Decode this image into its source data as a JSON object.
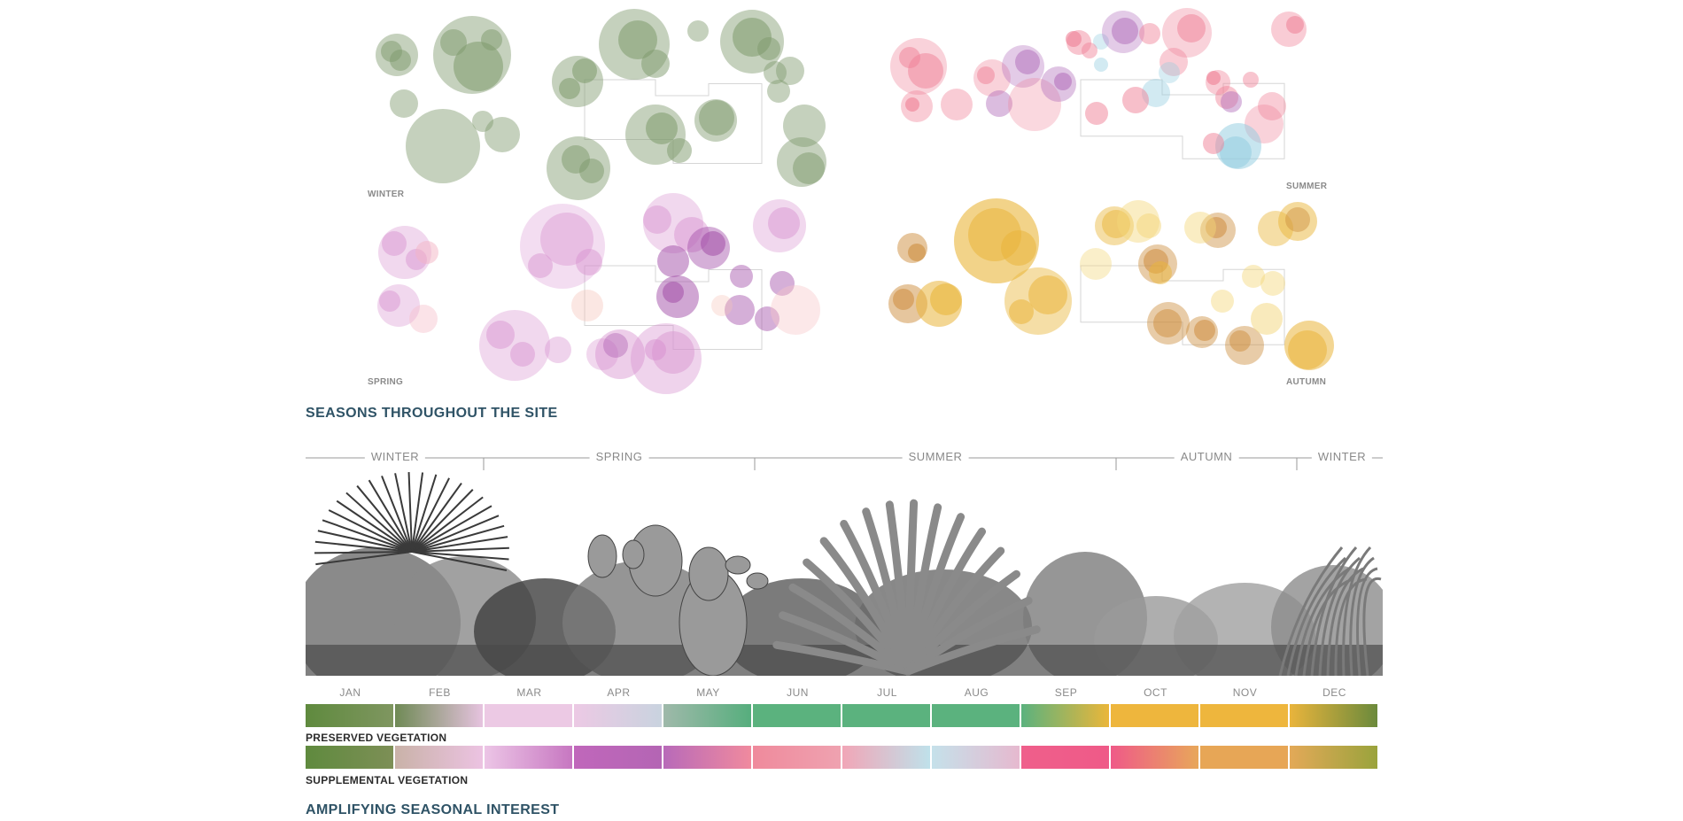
{
  "plans": {
    "winter_label": "WINTER",
    "summer_label": "SUMMER",
    "spring_label": "SPRING",
    "autumn_label": "AUTUMN",
    "colors": {
      "winter": "#7e9a6c",
      "spring": "#d890cf",
      "spring_deep": "#a24ea8",
      "summer": "#ef7f95",
      "summer_purple": "#b06bb9",
      "summer_blue": "#8fcbdf",
      "autumn": "#e9b53a",
      "autumn_deep": "#cd8d3e"
    }
  },
  "titles": {
    "seasons": "SEASONS THROUGHOUT THE SITE",
    "amplifying": "AMPLIFYING SEASONAL INTEREST"
  },
  "timeline": {
    "seasons": [
      "WINTER",
      "SPRING",
      "SUMMER",
      "AUTUMN",
      "WINTER"
    ],
    "months": [
      "JAN",
      "FEB",
      "MAR",
      "APR",
      "MAY",
      "JUN",
      "JUL",
      "AUG",
      "SEP",
      "OCT",
      "NOV",
      "DEC"
    ]
  },
  "preserved": {
    "label": "PRESERVED VEGETATION",
    "colors": [
      [
        "#5f8a3e",
        "#7f9660"
      ],
      [
        "#6f8a55",
        "#e6c3df"
      ],
      [
        "#ecc9e4",
        "#ecc9e4"
      ],
      [
        "#ecc9e4",
        "#c9d3df"
      ],
      [
        "#9fb9aa",
        "#56ae7d"
      ],
      [
        "#5bb27e",
        "#5bb27e"
      ],
      [
        "#5bb27e",
        "#5bb27e"
      ],
      [
        "#5bb27e",
        "#5bb27e"
      ],
      [
        "#5bb27e",
        "#eab63a"
      ],
      [
        "#eeb63d",
        "#eeb63d"
      ],
      [
        "#eeb63d",
        "#eeb63d"
      ],
      [
        "#e9b43c",
        "#6b8a3c"
      ]
    ]
  },
  "supplemental": {
    "label": "SUPPLEMENTAL VEGETATION",
    "colors": [
      [
        "#5f8a3e",
        "#7d8f56"
      ],
      [
        "#c9b2a8",
        "#ecc3e2"
      ],
      [
        "#ecc5e6",
        "#c777c1"
      ],
      [
        "#c067bb",
        "#b465b4"
      ],
      [
        "#b86ab9",
        "#f08a9e"
      ],
      [
        "#ef8a9c",
        "#efa2b0"
      ],
      [
        "#f1a6b7",
        "#bfe1ea"
      ],
      [
        "#c5e1ea",
        "#e6b9cf"
      ],
      [
        "#ef5f8b",
        "#ef5a88"
      ],
      [
        "#ef5a88",
        "#e8a75a"
      ],
      [
        "#e7a656",
        "#e7a656"
      ],
      [
        "#e3a958",
        "#9aa33c"
      ]
    ]
  }
}
